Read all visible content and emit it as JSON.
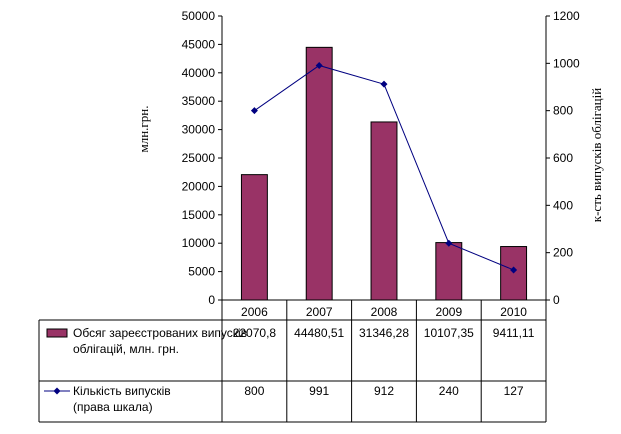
{
  "chart_data": {
    "type": "bar",
    "categories": [
      "2006",
      "2007",
      "2008",
      "2009",
      "2010"
    ],
    "series": [
      {
        "name": "Обсяг зареєстрованих випусків облігацій, млн. грн.",
        "type": "bar",
        "axis": "left",
        "values": [
          22070.8,
          44480.51,
          31346.28,
          10107.35,
          9411.11
        ],
        "display_values": [
          "22070,8",
          "44480,51",
          "31346,28",
          "10107,35",
          "9411,11"
        ]
      },
      {
        "name": "Кількість випусків (права шкала)",
        "type": "line",
        "axis": "right",
        "values": [
          800,
          991,
          912,
          240,
          127
        ],
        "display_values": [
          "800",
          "991",
          "912",
          "240",
          "127"
        ]
      }
    ],
    "ylabel_left": "млн.грн.",
    "ylabel_right": "к-сть випусків облігацій",
    "ylim_left": [
      0,
      50000
    ],
    "ylim_right": [
      0,
      1200
    ],
    "yticks_left": [
      "0",
      "5000",
      "10000",
      "15000",
      "20000",
      "25000",
      "30000",
      "35000",
      "40000",
      "45000",
      "50000"
    ],
    "yticks_right": [
      "0",
      "200",
      "400",
      "600",
      "800",
      "1000",
      "1200"
    ],
    "legend": "data-table-below",
    "grid": false,
    "colors": {
      "bar": "#993366",
      "line": "#000080"
    }
  }
}
